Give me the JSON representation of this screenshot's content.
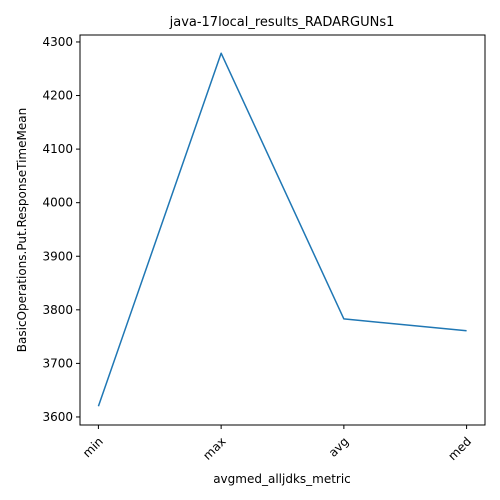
{
  "chart_data": {
    "type": "line",
    "title": "java-17local_results_RADARGUNs1",
    "xlabel": "avgmed_alljdks_metric",
    "ylabel": "BasicOperations.Put.ResponseTimeMean",
    "categories": [
      "min",
      "max",
      "avg",
      "med"
    ],
    "series": [
      {
        "values": [
          3620,
          4279,
          3783,
          3761
        ],
        "color": "#1f77b4"
      }
    ],
    "ylim": [
      3585,
      4313
    ],
    "yticks": [
      3600,
      3700,
      3800,
      3900,
      4000,
      4100,
      4200,
      4300
    ],
    "grid": false,
    "legend": "none",
    "x_tick_rotation_deg": 45
  }
}
